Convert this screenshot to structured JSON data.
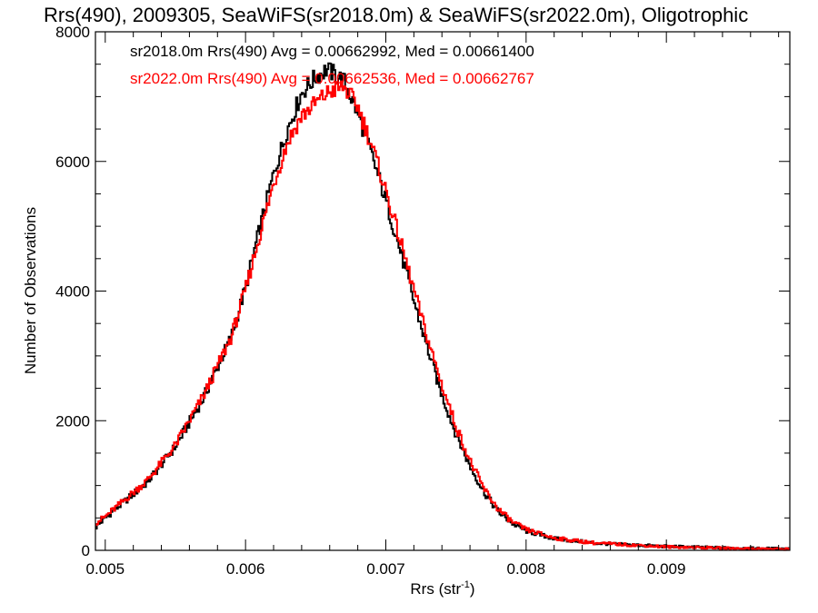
{
  "chart_data": {
    "type": "histogram-step",
    "title": "Rrs(490), 2009305, SeaWiFS(sr2018.0m) & SeaWiFS(sr2022.0m), Oligotrophic",
    "xlabel": "Rrs (str",
    "xlabel_superscript": "-1",
    "xlabel_suffix": ")",
    "ylabel": "Number of Observations",
    "xlim": [
      0.00493,
      0.00988
    ],
    "ylim": [
      0,
      8000
    ],
    "xticks": [
      0.005,
      0.006,
      0.007,
      0.008,
      0.009
    ],
    "xtick_labels": [
      "0.005",
      "0.006",
      "0.007",
      "0.008",
      "0.009"
    ],
    "yticks": [
      0,
      2000,
      4000,
      6000,
      8000
    ],
    "ytick_labels": [
      "0",
      "2000",
      "4000",
      "6000",
      "8000"
    ],
    "legend": [
      {
        "text": "sr2018.0m Rrs(490) Avg = 0.00662992, Med = 0.00661400",
        "color": "#000000"
      },
      {
        "text": "sr2022.0m Rrs(490) Avg = 0.00662536, Med = 0.00662767",
        "color": "#ff0000"
      }
    ],
    "series": [
      {
        "color": "#000000",
        "profile": [
          [
            0.00493,
            350
          ],
          [
            0.005,
            500
          ],
          [
            0.0053,
            1050
          ],
          [
            0.0055,
            1600
          ],
          [
            0.0057,
            2350
          ],
          [
            0.0059,
            3300
          ],
          [
            0.006,
            4050
          ],
          [
            0.0061,
            4950
          ],
          [
            0.0062,
            5800
          ],
          [
            0.0063,
            6500
          ],
          [
            0.0064,
            7050
          ],
          [
            0.0065,
            7300
          ],
          [
            0.00658,
            7420
          ],
          [
            0.0067,
            7250
          ],
          [
            0.0068,
            6750
          ],
          [
            0.0069,
            6100
          ],
          [
            0.007,
            5400
          ],
          [
            0.0071,
            4650
          ],
          [
            0.0072,
            3850
          ],
          [
            0.0073,
            3100
          ],
          [
            0.0074,
            2400
          ],
          [
            0.0075,
            1800
          ],
          [
            0.0076,
            1300
          ],
          [
            0.0077,
            900
          ],
          [
            0.0078,
            600
          ],
          [
            0.0079,
            420
          ],
          [
            0.008,
            300
          ],
          [
            0.0082,
            180
          ],
          [
            0.0085,
            110
          ],
          [
            0.009,
            60
          ],
          [
            0.0095,
            35
          ],
          [
            0.00988,
            25
          ]
        ]
      },
      {
        "color": "#ff0000",
        "profile": [
          [
            0.00493,
            420
          ],
          [
            0.005,
            520
          ],
          [
            0.0053,
            1080
          ],
          [
            0.0055,
            1620
          ],
          [
            0.0057,
            2380
          ],
          [
            0.0059,
            3300
          ],
          [
            0.006,
            4020
          ],
          [
            0.0061,
            4850
          ],
          [
            0.0062,
            5650
          ],
          [
            0.0063,
            6300
          ],
          [
            0.0064,
            6700
          ],
          [
            0.0065,
            6900
          ],
          [
            0.0066,
            7080
          ],
          [
            0.0067,
            7150
          ],
          [
            0.0068,
            6850
          ],
          [
            0.0069,
            6250
          ],
          [
            0.007,
            5550
          ],
          [
            0.0071,
            4800
          ],
          [
            0.0072,
            4020
          ],
          [
            0.0073,
            3250
          ],
          [
            0.0074,
            2550
          ],
          [
            0.0075,
            1920
          ],
          [
            0.0076,
            1380
          ],
          [
            0.0077,
            950
          ],
          [
            0.0078,
            640
          ],
          [
            0.0079,
            440
          ],
          [
            0.008,
            320
          ],
          [
            0.0082,
            190
          ],
          [
            0.0085,
            110
          ],
          [
            0.009,
            55
          ],
          [
            0.0095,
            30
          ],
          [
            0.00988,
            20
          ]
        ]
      }
    ]
  }
}
